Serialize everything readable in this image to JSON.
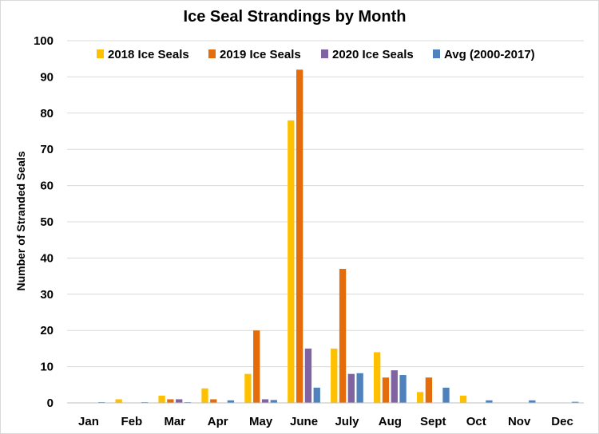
{
  "chart_data": {
    "type": "bar",
    "title": "Ice Seal Strandings by Month",
    "xlabel": "",
    "ylabel": "Number of Stranded  Seals",
    "ylim": [
      0,
      100
    ],
    "yticks": [
      "0",
      "10",
      "20",
      "30",
      "40",
      "50",
      "60",
      "70",
      "80",
      "90",
      "100"
    ],
    "grid": true,
    "legend_position": "top",
    "categories": [
      "Jan",
      "Feb",
      "Mar",
      "Apr",
      "May",
      "June",
      "July",
      "Aug",
      "Sept",
      "Oct",
      "Nov",
      "Dec"
    ],
    "series": [
      {
        "name": "2018 Ice Seals",
        "color": "#FFC000",
        "values": [
          0,
          1,
          2,
          4,
          8,
          78,
          15,
          14,
          3,
          2,
          0,
          0
        ]
      },
      {
        "name": "2019 Ice Seals",
        "color": "#E46C0A",
        "values": [
          0,
          0,
          1,
          1,
          20,
          92,
          37,
          7,
          7,
          0,
          0,
          0
        ]
      },
      {
        "name": "2020 Ice Seals",
        "color": "#8064A2",
        "values": [
          0,
          0,
          1,
          0,
          1,
          15,
          8,
          9,
          0,
          0,
          0,
          0
        ]
      },
      {
        "name": "Avg (2000-2017)",
        "color": "#4F81BD",
        "values": [
          0.2,
          0.2,
          0.2,
          0.7,
          0.8,
          4.2,
          8.2,
          7.7,
          4.2,
          0.7,
          0.7,
          0.3
        ]
      }
    ]
  }
}
